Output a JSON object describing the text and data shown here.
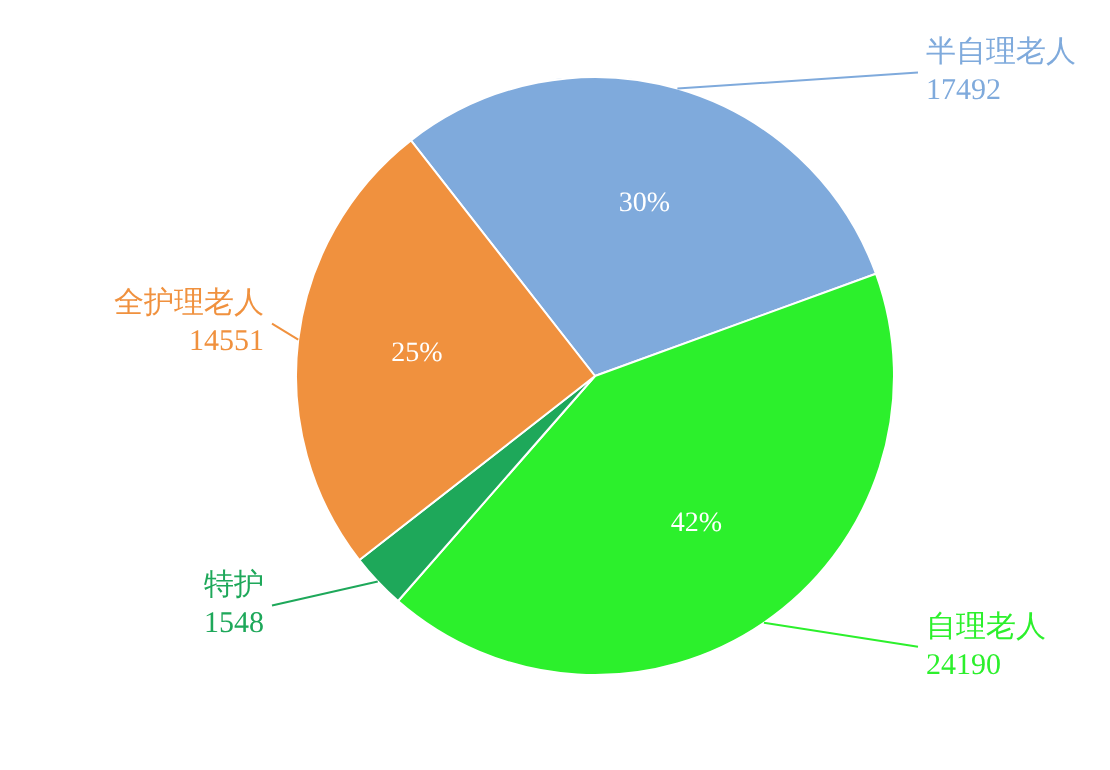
{
  "chart_data": {
    "type": "pie",
    "categories": [
      "半自理老人",
      "自理老人",
      "特护",
      "全护理老人"
    ],
    "values": [
      30,
      42,
      3,
      25
    ],
    "colors": [
      "#7faadc",
      "#2cf02c",
      "#1ea85a",
      "#f0913e"
    ],
    "value_labels": [
      "30%",
      "42%",
      null,
      "25%"
    ],
    "annotations": [
      "17492",
      "24190",
      "1548",
      "14551"
    ],
    "legend": false
  }
}
